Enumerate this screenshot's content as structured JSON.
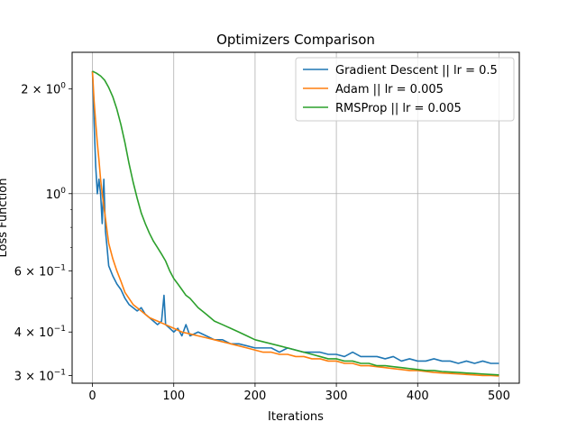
{
  "chart_data": {
    "type": "line",
    "title": "Optimizers Comparison",
    "xlabel": "Iterations",
    "ylabel": "Loss Function",
    "xlim": [
      -25,
      525
    ],
    "ylim": [
      0.285,
      2.55
    ],
    "yscale": "log",
    "grid": true,
    "legend_position": "top-right",
    "x_ticks": [
      0,
      100,
      200,
      300,
      400,
      500
    ],
    "y_major_ticks": [
      {
        "value": 1.0,
        "label": "10",
        "sup": "0",
        "prefix": ""
      },
      {
        "value": 2.0,
        "label": "10",
        "sup": "0",
        "prefix": "2 × "
      },
      {
        "value": 0.3,
        "label": "10",
        "sup": "−1",
        "prefix": "3 × "
      },
      {
        "value": 0.4,
        "label": "10",
        "sup": "−1",
        "prefix": "4 × "
      },
      {
        "value": 0.6,
        "label": "10",
        "sup": "−1",
        "prefix": "6 × "
      }
    ],
    "y_minor_ticks": [
      0.5,
      0.7,
      0.8,
      0.9
    ],
    "series": [
      {
        "name": "Gradient Descent || lr = 0.5",
        "color": "#1f77b4",
        "x": [
          0,
          2,
          4,
          6,
          8,
          10,
          12,
          14,
          16,
          18,
          20,
          25,
          30,
          35,
          40,
          45,
          50,
          55,
          60,
          65,
          70,
          75,
          80,
          85,
          88,
          90,
          95,
          100,
          105,
          110,
          115,
          120,
          130,
          140,
          150,
          160,
          170,
          180,
          190,
          200,
          210,
          220,
          230,
          240,
          250,
          260,
          270,
          280,
          290,
          300,
          310,
          320,
          330,
          340,
          350,
          360,
          370,
          380,
          390,
          400,
          410,
          420,
          430,
          440,
          450,
          460,
          470,
          480,
          490,
          500
        ],
        "y": [
          2.25,
          1.6,
          1.2,
          1.0,
          1.1,
          1.0,
          0.82,
          1.1,
          0.78,
          0.7,
          0.62,
          0.58,
          0.55,
          0.53,
          0.5,
          0.48,
          0.47,
          0.46,
          0.47,
          0.45,
          0.44,
          0.43,
          0.42,
          0.43,
          0.51,
          0.42,
          0.41,
          0.4,
          0.41,
          0.39,
          0.42,
          0.39,
          0.4,
          0.39,
          0.38,
          0.38,
          0.37,
          0.37,
          0.365,
          0.36,
          0.36,
          0.36,
          0.35,
          0.36,
          0.355,
          0.35,
          0.35,
          0.35,
          0.345,
          0.345,
          0.34,
          0.35,
          0.34,
          0.34,
          0.34,
          0.335,
          0.34,
          0.33,
          0.335,
          0.33,
          0.33,
          0.335,
          0.33,
          0.33,
          0.325,
          0.33,
          0.325,
          0.33,
          0.325,
          0.325
        ]
      },
      {
        "name": "Adam || lr = 0.005",
        "color": "#ff7f0e",
        "x": [
          0,
          2,
          4,
          6,
          8,
          10,
          12,
          14,
          16,
          18,
          20,
          25,
          30,
          35,
          40,
          50,
          60,
          70,
          80,
          90,
          100,
          110,
          120,
          130,
          140,
          150,
          160,
          170,
          180,
          190,
          200,
          210,
          220,
          230,
          240,
          250,
          260,
          270,
          280,
          290,
          300,
          310,
          320,
          330,
          340,
          350,
          360,
          370,
          380,
          390,
          400,
          410,
          420,
          430,
          440,
          450,
          460,
          470,
          480,
          490,
          500
        ],
        "y": [
          2.25,
          1.85,
          1.6,
          1.4,
          1.25,
          1.1,
          1.0,
          0.92,
          0.85,
          0.78,
          0.72,
          0.65,
          0.6,
          0.56,
          0.52,
          0.48,
          0.46,
          0.44,
          0.43,
          0.42,
          0.41,
          0.4,
          0.395,
          0.39,
          0.385,
          0.38,
          0.375,
          0.37,
          0.365,
          0.36,
          0.355,
          0.35,
          0.35,
          0.345,
          0.345,
          0.34,
          0.34,
          0.335,
          0.335,
          0.33,
          0.33,
          0.325,
          0.325,
          0.32,
          0.32,
          0.318,
          0.316,
          0.314,
          0.312,
          0.31,
          0.31,
          0.308,
          0.306,
          0.305,
          0.304,
          0.303,
          0.302,
          0.301,
          0.3,
          0.3,
          0.299
        ]
      },
      {
        "name": "RMSProp || lr = 0.005",
        "color": "#2ca02c",
        "x": [
          0,
          5,
          10,
          15,
          20,
          25,
          30,
          35,
          40,
          45,
          50,
          55,
          60,
          65,
          70,
          75,
          80,
          85,
          90,
          95,
          100,
          105,
          110,
          115,
          120,
          130,
          140,
          150,
          160,
          170,
          180,
          190,
          200,
          210,
          220,
          230,
          240,
          250,
          260,
          270,
          280,
          290,
          300,
          310,
          320,
          330,
          340,
          350,
          360,
          370,
          380,
          390,
          400,
          410,
          420,
          430,
          440,
          450,
          460,
          470,
          480,
          490,
          500
        ],
        "y": [
          2.25,
          2.22,
          2.18,
          2.12,
          2.02,
          1.9,
          1.75,
          1.58,
          1.4,
          1.22,
          1.08,
          0.97,
          0.88,
          0.82,
          0.77,
          0.73,
          0.7,
          0.67,
          0.64,
          0.6,
          0.57,
          0.55,
          0.53,
          0.51,
          0.5,
          0.47,
          0.45,
          0.43,
          0.42,
          0.41,
          0.4,
          0.39,
          0.38,
          0.375,
          0.37,
          0.365,
          0.36,
          0.355,
          0.35,
          0.345,
          0.34,
          0.335,
          0.335,
          0.33,
          0.33,
          0.325,
          0.325,
          0.32,
          0.32,
          0.318,
          0.316,
          0.314,
          0.312,
          0.31,
          0.31,
          0.308,
          0.307,
          0.306,
          0.305,
          0.304,
          0.303,
          0.302,
          0.301
        ]
      }
    ]
  }
}
